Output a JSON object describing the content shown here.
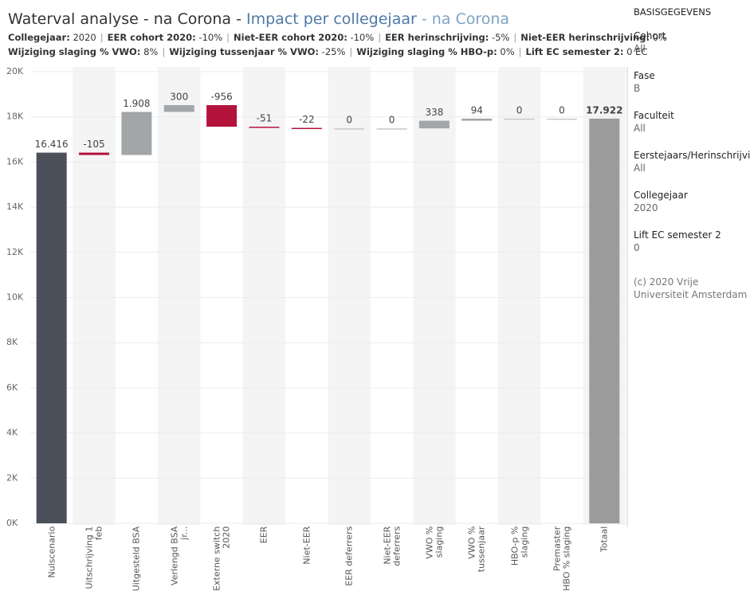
{
  "chart_data": {
    "type": "waterfall",
    "title": [
      "Waterval analyse - na Corona - ",
      "Impact per collegejaar",
      " - na Corona"
    ],
    "title_colors": [
      "#333333",
      "#4e79a7",
      "#7fa2c4"
    ],
    "separator": "|",
    "subtitle_lines": [
      [
        {
          "label": "Collegejaar:",
          "value": "2020"
        },
        {
          "label": "EER cohort 2020:",
          "value": "-10%"
        },
        {
          "label": "Niet-EER cohort 2020:",
          "value": "-10%"
        },
        {
          "label": "EER herinschrijving:",
          "value": "-5%"
        },
        {
          "label": "Niet-EER herinschrijving:",
          "value": "0%"
        }
      ],
      [
        {
          "label": "Wijziging slaging % VWO:",
          "value": "8%"
        },
        {
          "label": "Wijziging tussenjaar % VWO:",
          "value": "-25%"
        },
        {
          "label": "Wijziging slaging % HBO-p:",
          "value": "0%"
        },
        {
          "label": "Lift EC semester 2:",
          "value": "0 EC"
        }
      ]
    ],
    "categories": [
      "Nulscenario",
      "Uitschrijving 1 feb",
      "Uitgesteld BSA",
      "Verlengd BSA jr...",
      "Externe switch 2020",
      "EER",
      "Niet-EER",
      "EER deferrers",
      "Niet-EER deferrers",
      "VWO % slaging",
      "VWO % tussenjaar",
      "HBO-p % slaging",
      "Premaster HBO % slaging",
      "Totaal"
    ],
    "values": [
      16416,
      -105,
      1908,
      300,
      -956,
      -51,
      -22,
      0,
      0,
      338,
      94,
      0,
      0,
      17922
    ],
    "value_labels": [
      "16.416",
      "-105",
      "1.908",
      "300",
      "-956",
      "-51",
      "-22",
      "0",
      "0",
      "338",
      "94",
      "0",
      "0",
      "17.922"
    ],
    "colors": {
      "start": "#4b505b",
      "positive": "#a3a6a9",
      "negative": "#b3123b",
      "total": "#9b9b9b"
    },
    "ylim": [
      0,
      20000
    ],
    "yticks": [
      {
        "value": 0,
        "label": "0K"
      },
      {
        "value": 2000,
        "label": "2K"
      },
      {
        "value": 4000,
        "label": "4K"
      },
      {
        "value": 6000,
        "label": "6K"
      },
      {
        "value": 8000,
        "label": "8K"
      },
      {
        "value": 10000,
        "label": "10K"
      },
      {
        "value": 12000,
        "label": "12K"
      },
      {
        "value": 14000,
        "label": "14K"
      },
      {
        "value": 16000,
        "label": "16K"
      },
      {
        "value": 18000,
        "label": "18K"
      },
      {
        "value": 20000,
        "label": "20K"
      }
    ],
    "grid": true
  },
  "sidebar": {
    "heading": "BASISGEGEVENS",
    "filters": [
      {
        "label": "Cohort",
        "value": "All"
      },
      {
        "label": "Fase",
        "value": "B"
      },
      {
        "label": "Faculteit",
        "value": "All"
      },
      {
        "label": "Eerstejaars/Herinschrijvin.",
        "value": "All"
      },
      {
        "label": "Collegejaar",
        "value": "2020"
      },
      {
        "label": "Lift EC semester 2",
        "value": "0"
      }
    ],
    "copyright": "(c) 2020 Vrije Universiteit Amsterdam"
  }
}
